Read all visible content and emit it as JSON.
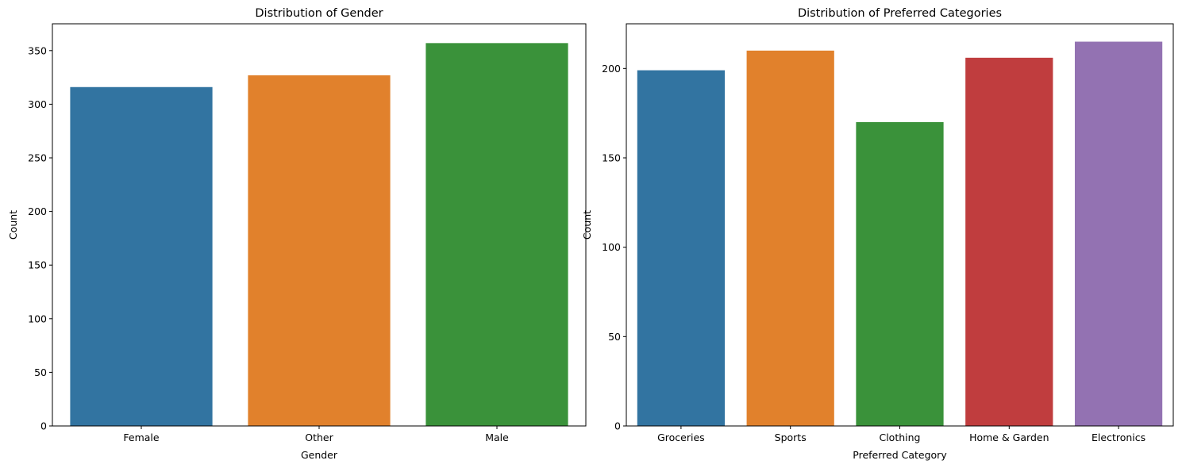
{
  "chart_data": [
    {
      "type": "bar",
      "title": "Distribution of Gender",
      "xlabel": "Gender",
      "ylabel": "Count",
      "categories": [
        "Female",
        "Other",
        "Male"
      ],
      "values": [
        316,
        327,
        357
      ],
      "colors": [
        "#3274a1",
        "#e1812c",
        "#3a923a"
      ],
      "ylim": [
        0,
        375
      ],
      "yticks": [
        0,
        50,
        100,
        150,
        200,
        250,
        300,
        350
      ],
      "grid": false,
      "legend": "none"
    },
    {
      "type": "bar",
      "title": "Distribution of Preferred Categories",
      "xlabel": "Preferred Category",
      "ylabel": "Count",
      "categories": [
        "Groceries",
        "Sports",
        "Clothing",
        "Home & Garden",
        "Electronics"
      ],
      "values": [
        199,
        210,
        170,
        206,
        215
      ],
      "colors": [
        "#3274a1",
        "#e1812c",
        "#3a923a",
        "#c03d3e",
        "#9372b2"
      ],
      "ylim": [
        0,
        225
      ],
      "yticks": [
        0,
        50,
        100,
        150,
        200
      ],
      "grid": false,
      "legend": "none"
    }
  ]
}
